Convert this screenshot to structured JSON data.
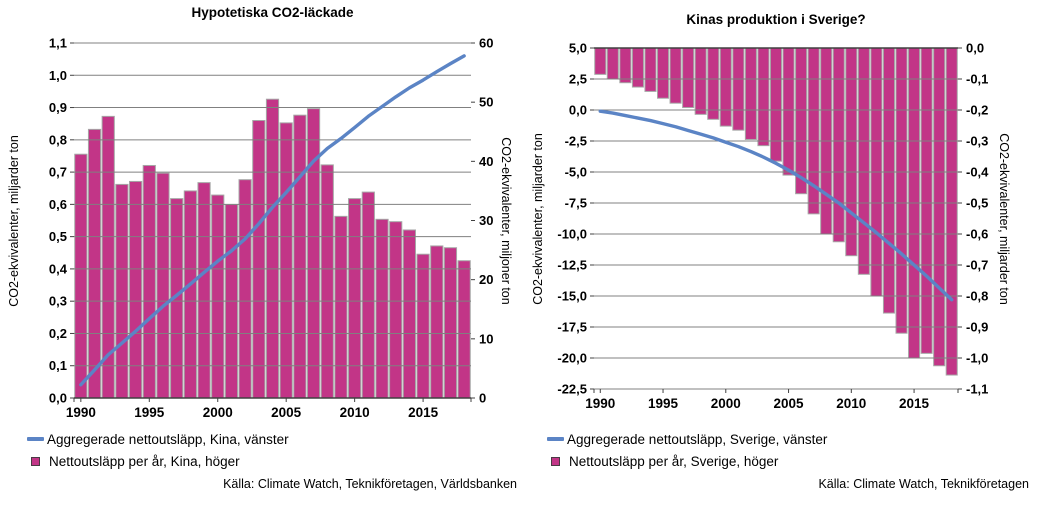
{
  "colors": {
    "bar_fill": "#C23587",
    "bar_border": "#A6A6A6",
    "line": "#5B84C5",
    "grid": "#808080",
    "axis": "#404040",
    "text": "#000000",
    "legend_square_border": "#4A3B44"
  },
  "chart_data": [
    {
      "type": "bar+line",
      "title": "Hypotetiska CO2-läckade",
      "categories": [
        1990,
        1991,
        1992,
        1993,
        1994,
        1995,
        1996,
        1997,
        1998,
        1999,
        2000,
        2001,
        2002,
        2003,
        2004,
        2005,
        2006,
        2007,
        2008,
        2009,
        2010,
        2011,
        2012,
        2013,
        2014,
        2015,
        2016,
        2017,
        2018
      ],
      "x_tick_years": [
        1990,
        1995,
        2000,
        2005,
        2010,
        2015
      ],
      "axes": {
        "left": {
          "title": "CO2-ekvivalenter, miljarder ton",
          "min": 0,
          "max": 1.1,
          "tick_values": [
            1.1,
            1.0,
            0.9,
            0.8,
            0.7,
            0.6,
            0.5,
            0.4,
            0.3,
            0.2,
            0.1,
            0.0
          ],
          "tick_labels": [
            "1,1",
            "1,0",
            "0,9",
            "0,8",
            "0,7",
            "0,6",
            "0,5",
            "0,4",
            "0,3",
            "0,2",
            "0,1",
            "0,0"
          ]
        },
        "right": {
          "title": "CO2-ekvivalenter, miljoner ton",
          "min": 0,
          "max": 60,
          "tick_values": [
            60,
            50,
            40,
            30,
            20,
            10,
            0
          ],
          "tick_labels": [
            "60",
            "50",
            "40",
            "30",
            "20",
            "10",
            "0"
          ]
        }
      },
      "series": [
        {
          "name": "Nettoutsläpp per år, Kina, höger",
          "type": "bar",
          "axis": "right",
          "values": [
            41.2,
            45.4,
            47.6,
            36.1,
            36.6,
            39.3,
            38.0,
            33.7,
            35.0,
            36.4,
            34.3,
            32.7,
            36.9,
            46.9,
            50.5,
            46.5,
            47.8,
            48.9,
            39.4,
            30.7,
            33.7,
            34.8,
            30.2,
            29.8,
            28.4,
            24.3,
            25.7,
            25.4,
            23.2
          ]
        },
        {
          "name": "Aggregerade nettoutsläpp, Kina, vänster",
          "type": "line",
          "axis": "left",
          "values": [
            0.041,
            0.087,
            0.134,
            0.17,
            0.207,
            0.246,
            0.284,
            0.318,
            0.353,
            0.389,
            0.424,
            0.456,
            0.493,
            0.54,
            0.591,
            0.637,
            0.685,
            0.734,
            0.773,
            0.804,
            0.838,
            0.873,
            0.903,
            0.933,
            0.961,
            0.985,
            1.011,
            1.036,
            1.06
          ]
        }
      ],
      "legend": [
        {
          "marker": "line",
          "label": "Aggregerade nettoutsläpp, Kina, vänster"
        },
        {
          "marker": "square",
          "label": "Nettoutsläpp per år, Kina, höger"
        }
      ],
      "source": "Källa: Climate Watch, Teknikföretagen, Världsbanken"
    },
    {
      "type": "bar+line",
      "title": "Kinas produktion i Sverige?",
      "categories": [
        1990,
        1991,
        1992,
        1993,
        1994,
        1995,
        1996,
        1997,
        1998,
        1999,
        2000,
        2001,
        2002,
        2003,
        2004,
        2005,
        2006,
        2007,
        2008,
        2009,
        2010,
        2011,
        2012,
        2013,
        2014,
        2015,
        2016,
        2017,
        2018
      ],
      "x_tick_years": [
        1990,
        1995,
        2000,
        2005,
        2010,
        2015
      ],
      "axes": {
        "left": {
          "title": "CO2-ekvivalenter, miljarder ton",
          "min": -22.5,
          "max": 5.0,
          "tick_values": [
            5.0,
            2.5,
            0.0,
            -2.5,
            -5.0,
            -7.5,
            -10.0,
            -12.5,
            -15.0,
            -17.5,
            -20.0,
            -22.5
          ],
          "tick_labels": [
            "5,0",
            "2,5",
            "0,0",
            "-2,5",
            "-5,0",
            "-7,5",
            "-10,0",
            "-12,5",
            "-15,0",
            "-17,5",
            "-20,0",
            "-22,5"
          ]
        },
        "right": {
          "title": "CO2-ekvivalenter, miljarder ton",
          "min": -1.1,
          "max": 0.0,
          "tick_values": [
            0.0,
            -0.1,
            -0.2,
            -0.3,
            -0.4,
            -0.5,
            -0.6,
            -0.7,
            -0.8,
            -0.9,
            -1.0,
            -1.1
          ],
          "tick_labels": [
            "0,0",
            "-0,1",
            "-0,2",
            "-0,3",
            "-0,4",
            "-0,5",
            "-0,6",
            "-0,7",
            "-0,8",
            "-0,9",
            "-1,0",
            "-1,1"
          ]
        }
      },
      "series": [
        {
          "name": "Nettoutsläpp per år, Sverige, höger",
          "type": "bar",
          "axis": "right",
          "values": [
            -0.085,
            -0.1,
            -0.112,
            -0.126,
            -0.14,
            -0.162,
            -0.178,
            -0.192,
            -0.214,
            -0.23,
            -0.252,
            -0.265,
            -0.295,
            -0.315,
            -0.365,
            -0.41,
            -0.47,
            -0.535,
            -0.6,
            -0.625,
            -0.67,
            -0.73,
            -0.8,
            -0.855,
            -0.92,
            -1.0,
            -0.985,
            -1.025,
            -1.055
          ]
        },
        {
          "name": "Aggregerade nettoutsläpp, Sverige, vänster",
          "type": "line",
          "axis": "left",
          "values": [
            -0.1,
            -0.25,
            -0.45,
            -0.65,
            -0.85,
            -1.1,
            -1.35,
            -1.65,
            -1.95,
            -2.25,
            -2.6,
            -2.95,
            -3.35,
            -3.8,
            -4.3,
            -4.85,
            -5.45,
            -6.1,
            -6.8,
            -7.5,
            -8.3,
            -9.1,
            -9.9,
            -10.75,
            -11.6,
            -12.5,
            -13.4,
            -14.35,
            -15.3
          ]
        }
      ],
      "legend": [
        {
          "marker": "line",
          "label": "Aggregerade nettoutsläpp, Sverige, vänster"
        },
        {
          "marker": "square",
          "label": "Nettoutsläpp per år, Sverige, höger"
        }
      ],
      "source": "Källa: Climate Watch, Teknikföretagen"
    }
  ]
}
